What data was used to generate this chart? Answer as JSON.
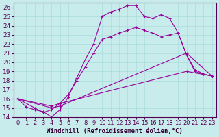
{
  "xlabel": "Windchill (Refroidissement éolien,°C)",
  "xlim": [
    -0.5,
    23.5
  ],
  "ylim": [
    14,
    26.5
  ],
  "xticks": [
    0,
    1,
    2,
    3,
    4,
    5,
    6,
    7,
    8,
    9,
    10,
    11,
    12,
    13,
    14,
    15,
    16,
    17,
    18,
    19,
    20,
    21,
    22,
    23
  ],
  "yticks": [
    14,
    15,
    16,
    17,
    18,
    19,
    20,
    21,
    22,
    23,
    24,
    25,
    26
  ],
  "background_color": "#c8ecec",
  "line_color": "#990099",
  "grid_color": "#aadddd",
  "lines": [
    {
      "x": [
        0,
        1,
        2,
        3,
        4,
        5,
        6,
        7,
        8,
        9,
        10,
        11,
        12,
        13,
        14,
        15,
        16,
        17,
        18,
        19,
        20,
        21,
        22,
        23
      ],
      "y": [
        16.0,
        15.1,
        14.8,
        14.6,
        14.0,
        14.8,
        16.2,
        18.3,
        20.3,
        22.0,
        25.0,
        25.5,
        25.8,
        26.2,
        26.2,
        25.0,
        24.8,
        25.2,
        24.8,
        23.2,
        20.8,
        19.2,
        18.7,
        18.5
      ]
    },
    {
      "x": [
        0,
        2,
        3,
        4,
        5,
        6,
        7,
        8,
        9,
        10,
        11,
        12,
        13,
        14,
        15,
        16,
        17,
        18,
        19,
        20,
        21,
        22,
        23
      ],
      "y": [
        16.0,
        15.0,
        14.5,
        14.8,
        15.5,
        16.5,
        18.0,
        19.5,
        21.0,
        22.5,
        22.8,
        23.2,
        23.5,
        23.8,
        23.5,
        23.2,
        22.8,
        23.0,
        23.2,
        20.8,
        19.0,
        18.7,
        18.5
      ]
    },
    {
      "x": [
        0,
        4,
        5,
        20,
        23
      ],
      "y": [
        16.0,
        15.0,
        15.2,
        21.0,
        18.5
      ]
    },
    {
      "x": [
        0,
        4,
        5,
        20,
        23
      ],
      "y": [
        16.0,
        15.2,
        15.5,
        19.0,
        18.5
      ]
    }
  ],
  "font_size": 6.5
}
